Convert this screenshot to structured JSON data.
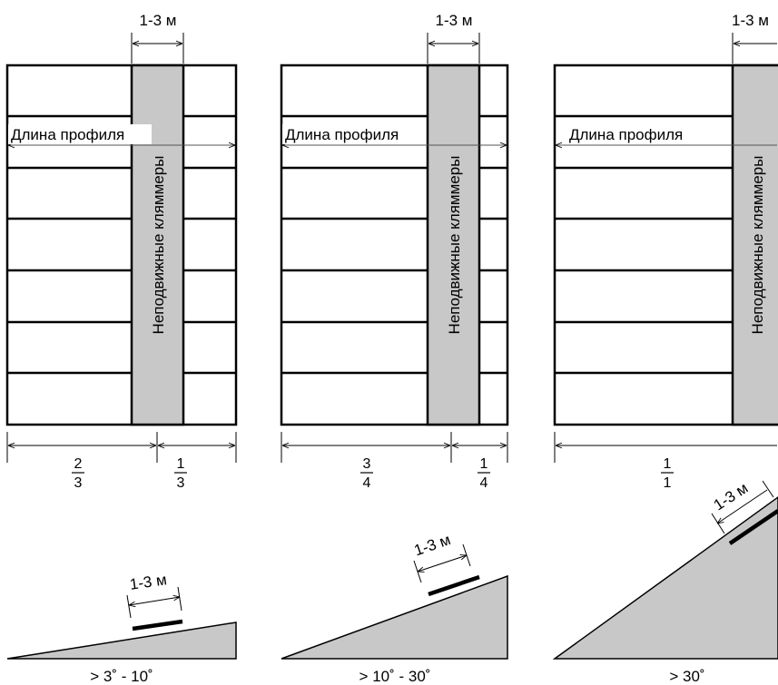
{
  "colors": {
    "background": "#ffffff",
    "stroke": "#000000",
    "fixed_clip_fill": "#c8c8c8",
    "slope_fill": "#c8c8c8",
    "dim_line": "#555555"
  },
  "panels": [
    {
      "top_dim_label": "1-3 м",
      "profile_length_label": "Длина профиля",
      "fixed_clips_label": "Неподвижные кляммеры",
      "fraction_left": {
        "num": "2",
        "den": "3"
      },
      "fraction_right": {
        "num": "1",
        "den": "3"
      },
      "slope_dim_label": "1-3 м",
      "angle_label": "> 3˚ - 10˚"
    },
    {
      "top_dim_label": "1-3 м",
      "profile_length_label": "Длина профиля",
      "fixed_clips_label": "Неподвижные кляммеры",
      "fraction_left": {
        "num": "3",
        "den": "4"
      },
      "fraction_right": {
        "num": "1",
        "den": "4"
      },
      "slope_dim_label": "1-3 м",
      "angle_label": "> 10˚ - 30˚"
    },
    {
      "top_dim_label": "1-3 м",
      "profile_length_label": "Длина профиля",
      "fixed_clips_label": "Неподвижные кляммеры",
      "fraction_left": {
        "num": "1",
        "den": "1"
      },
      "fraction_right": null,
      "slope_dim_label": "1-3 м",
      "angle_label": "> 30˚"
    }
  ]
}
